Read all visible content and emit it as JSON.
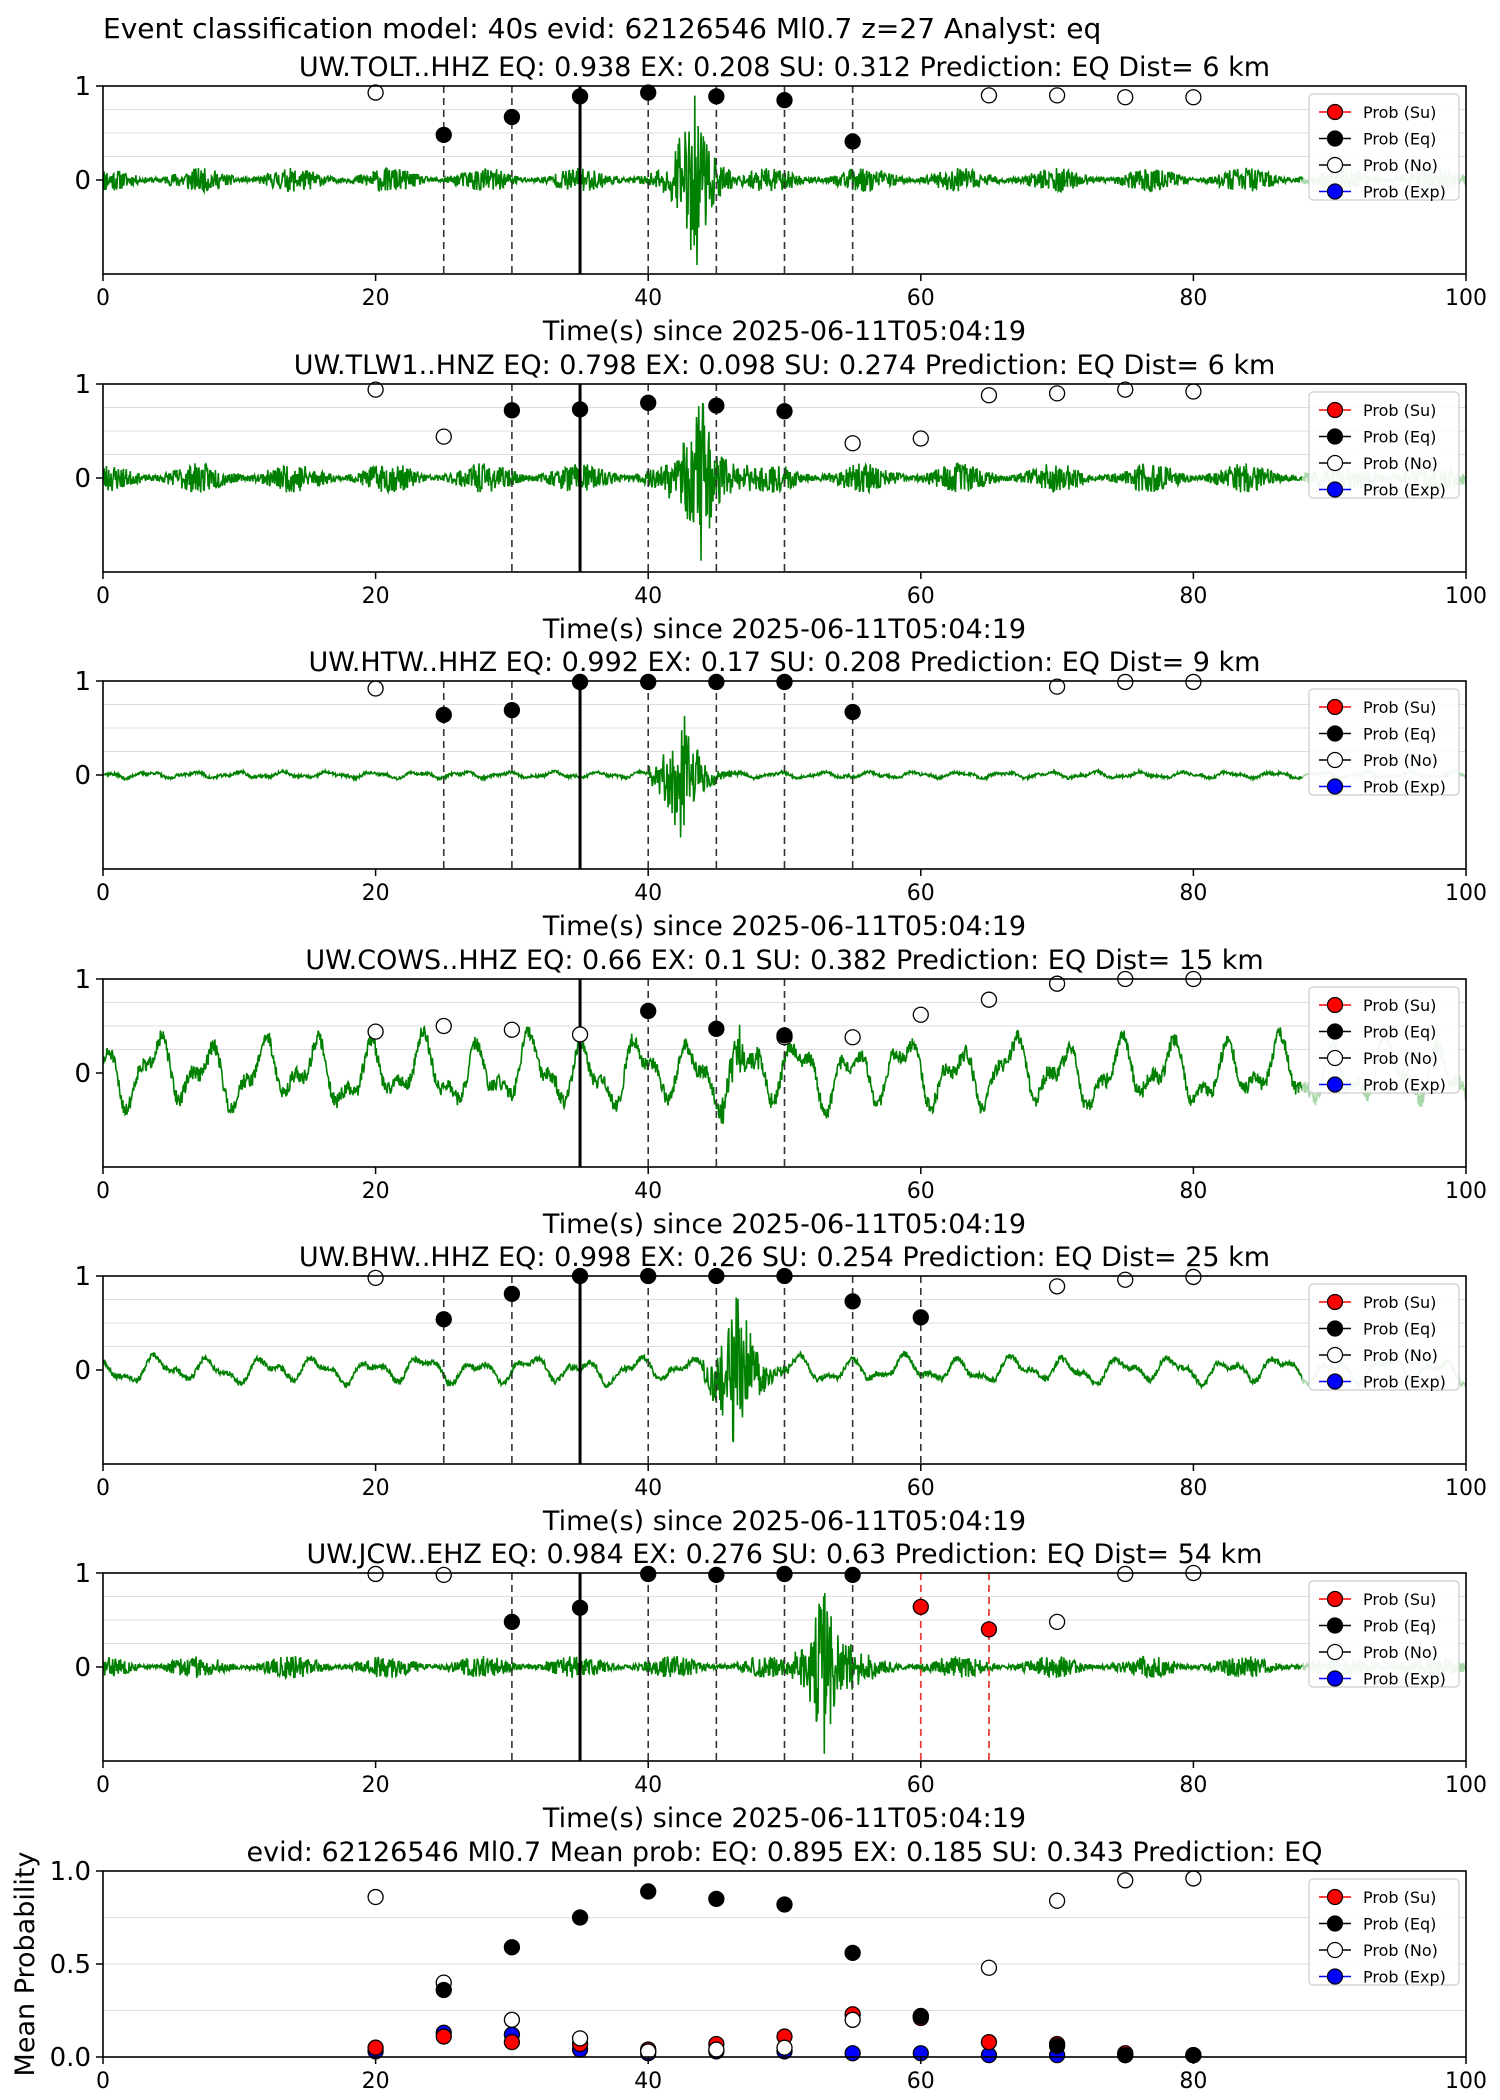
{
  "figure": {
    "suptitle": "Event classification model: 40s evid: 62126546 Ml0.7 z=27 Analyst: eq"
  },
  "legend_labels": [
    "Prob (Su)",
    "Prob (Eq)",
    "Prob (No)",
    "Prob (Exp)"
  ],
  "colors": {
    "waveform": "#008000",
    "waveform_faded": "#a9d8a9",
    "su": "#ff0000",
    "eq": "#000000",
    "no": "#ffffff",
    "exp": "#0000ff",
    "pick_line": "#000000",
    "su_line": "#e8403a"
  },
  "chart_data": [
    {
      "type": "scatter",
      "title": "UW.TOLT..HHZ   EQ: 0.938  EX: 0.208  SU: 0.312   Prediction: EQ    Dist= 6 km",
      "xlabel": "Time(s) since 2025-06-11T05:04:19",
      "ylabel": "",
      "xlim": [
        0,
        100
      ],
      "ylim": [
        -1,
        1
      ],
      "x_ticks": [
        "0",
        "20",
        "40",
        "60",
        "80",
        "100"
      ],
      "y_ticks": [
        "0",
        "1"
      ],
      "waveform": {
        "style": "noisy",
        "amplitude": 0.13,
        "burst_center": 43,
        "burst_amp": 1.0,
        "seed": 11
      },
      "solid_line": 35,
      "dashed_lines": [
        25,
        30,
        40,
        45,
        50,
        55
      ],
      "red_dashed_lines": [],
      "series": [
        {
          "name": "Prob (Eq)",
          "points": [
            [
              25,
              0.48
            ],
            [
              30,
              0.67
            ],
            [
              35,
              0.89
            ],
            [
              40,
              0.93
            ],
            [
              45,
              0.89
            ],
            [
              50,
              0.85
            ],
            [
              55,
              0.41
            ]
          ]
        },
        {
          "name": "Prob (No)",
          "points": [
            [
              20,
              0.93
            ],
            [
              65,
              0.9
            ],
            [
              70,
              0.9
            ],
            [
              75,
              0.88
            ],
            [
              80,
              0.88
            ]
          ]
        }
      ]
    },
    {
      "type": "scatter",
      "title": "UW.TLW1..HNZ   EQ: 0.798  EX: 0.098  SU: 0.274   Prediction: EQ    Dist= 6 km",
      "xlabel": "Time(s) since 2025-06-11T05:04:19",
      "ylabel": "",
      "xlim": [
        0,
        100
      ],
      "ylim": [
        -1,
        1
      ],
      "x_ticks": [
        "0",
        "20",
        "40",
        "60",
        "80",
        "100"
      ],
      "y_ticks": [
        "0",
        "1"
      ],
      "waveform": {
        "style": "noisy",
        "amplitude": 0.16,
        "burst_center": 43.5,
        "burst_amp": 1.0,
        "seed": 23
      },
      "solid_line": 35,
      "dashed_lines": [
        30,
        40,
        45,
        50
      ],
      "red_dashed_lines": [],
      "series": [
        {
          "name": "Prob (Eq)",
          "points": [
            [
              30,
              0.72
            ],
            [
              35,
              0.73
            ],
            [
              40,
              0.8
            ],
            [
              45,
              0.77
            ],
            [
              50,
              0.71
            ]
          ]
        },
        {
          "name": "Prob (No)",
          "points": [
            [
              20,
              0.94
            ],
            [
              25,
              0.44
            ],
            [
              55,
              0.37
            ],
            [
              60,
              0.42
            ],
            [
              65,
              0.88
            ],
            [
              70,
              0.9
            ],
            [
              75,
              0.94
            ],
            [
              80,
              0.92
            ]
          ]
        }
      ]
    },
    {
      "type": "scatter",
      "title": "UW.HTW..HHZ   EQ: 0.992  EX: 0.17  SU: 0.208   Prediction: EQ    Dist= 9 km",
      "xlabel": "Time(s) since 2025-06-11T05:04:19",
      "ylabel": "",
      "xlim": [
        0,
        100
      ],
      "ylim": [
        -1,
        1
      ],
      "x_ticks": [
        "0",
        "20",
        "40",
        "60",
        "80",
        "100"
      ],
      "y_ticks": [
        "0",
        "1"
      ],
      "waveform": {
        "style": "quiet",
        "amplitude": 0.04,
        "burst_center": 42,
        "burst_amp": 0.8,
        "seed": 37
      },
      "solid_line": 35,
      "dashed_lines": [
        25,
        30,
        40,
        45,
        50,
        55
      ],
      "red_dashed_lines": [],
      "series": [
        {
          "name": "Prob (Eq)",
          "points": [
            [
              25,
              0.64
            ],
            [
              30,
              0.69
            ],
            [
              35,
              0.99
            ],
            [
              40,
              0.99
            ],
            [
              45,
              0.99
            ],
            [
              50,
              0.99
            ],
            [
              55,
              0.67
            ]
          ]
        },
        {
          "name": "Prob (No)",
          "points": [
            [
              20,
              0.92
            ],
            [
              70,
              0.94
            ],
            [
              75,
              0.99
            ],
            [
              80,
              0.99
            ]
          ]
        }
      ]
    },
    {
      "type": "scatter",
      "title": "UW.COWS..HHZ   EQ: 0.66  EX: 0.1  SU: 0.382   Prediction: EQ    Dist= 15 km",
      "xlabel": "Time(s) since 2025-06-11T05:04:19",
      "ylabel": "",
      "xlim": [
        0,
        100
      ],
      "ylim": [
        -1,
        1
      ],
      "x_ticks": [
        "0",
        "20",
        "40",
        "60",
        "80",
        "100"
      ],
      "y_ticks": [
        "0",
        "1"
      ],
      "waveform": {
        "style": "swell",
        "amplitude": 0.45,
        "burst_center": 46,
        "burst_amp": 0.3,
        "seed": 51
      },
      "solid_line": 35,
      "dashed_lines": [
        40,
        45,
        50
      ],
      "red_dashed_lines": [],
      "series": [
        {
          "name": "Prob (Eq)",
          "points": [
            [
              40,
              0.66
            ],
            [
              45,
              0.47
            ],
            [
              50,
              0.4
            ]
          ]
        },
        {
          "name": "Prob (No)",
          "points": [
            [
              20,
              0.44
            ],
            [
              25,
              0.5
            ],
            [
              30,
              0.46
            ],
            [
              35,
              0.41
            ],
            [
              50,
              0.38
            ],
            [
              55,
              0.38
            ],
            [
              60,
              0.62
            ],
            [
              65,
              0.78
            ],
            [
              70,
              0.95
            ],
            [
              75,
              1.0
            ],
            [
              80,
              1.0
            ]
          ]
        }
      ]
    },
    {
      "type": "scatter",
      "title": "UW.BHW..HHZ   EQ: 0.998  EX: 0.26  SU: 0.254   Prediction: EQ    Dist= 25 km",
      "xlabel": "Time(s) since 2025-06-11T05:04:19",
      "ylabel": "",
      "xlim": [
        0,
        100
      ],
      "ylim": [
        -1,
        1
      ],
      "x_ticks": [
        "0",
        "20",
        "40",
        "60",
        "80",
        "100"
      ],
      "y_ticks": [
        "0",
        "1"
      ],
      "waveform": {
        "style": "swell",
        "amplitude": 0.17,
        "burst_center": 46,
        "burst_amp": 0.95,
        "seed": 67
      },
      "solid_line": 35,
      "dashed_lines": [
        25,
        30,
        40,
        45,
        50,
        55,
        60
      ],
      "red_dashed_lines": [],
      "series": [
        {
          "name": "Prob (Eq)",
          "points": [
            [
              25,
              0.54
            ],
            [
              30,
              0.81
            ],
            [
              35,
              1.0
            ],
            [
              40,
              1.0
            ],
            [
              45,
              1.0
            ],
            [
              50,
              1.0
            ],
            [
              55,
              0.73
            ],
            [
              60,
              0.56
            ]
          ]
        },
        {
          "name": "Prob (No)",
          "points": [
            [
              20,
              0.98
            ],
            [
              70,
              0.89
            ],
            [
              75,
              0.96
            ],
            [
              80,
              0.99
            ]
          ]
        }
      ]
    },
    {
      "type": "scatter",
      "title": "UW.JCW..EHZ   EQ: 0.984  EX: 0.276  SU: 0.63   Prediction: EQ    Dist= 54 km",
      "xlabel": "Time(s) since 2025-06-11T05:04:19",
      "ylabel": "",
      "xlim": [
        0,
        100
      ],
      "ylim": [
        -1,
        1
      ],
      "x_ticks": [
        "0",
        "20",
        "40",
        "60",
        "80",
        "100"
      ],
      "y_ticks": [
        "0",
        "1"
      ],
      "waveform": {
        "style": "noisy",
        "amplitude": 0.12,
        "burst_center": 52.5,
        "burst_amp": 1.0,
        "seed": 83
      },
      "solid_line": 35,
      "dashed_lines": [
        30,
        40,
        45,
        50,
        55
      ],
      "red_dashed_lines": [
        60,
        65
      ],
      "series": [
        {
          "name": "Prob (Su)",
          "points": [
            [
              60,
              0.64
            ],
            [
              65,
              0.4
            ]
          ]
        },
        {
          "name": "Prob (Eq)",
          "points": [
            [
              30,
              0.48
            ],
            [
              35,
              0.63
            ],
            [
              40,
              0.99
            ],
            [
              45,
              0.98
            ],
            [
              50,
              0.99
            ],
            [
              55,
              0.98
            ]
          ]
        },
        {
          "name": "Prob (No)",
          "points": [
            [
              20,
              0.99
            ],
            [
              25,
              0.98
            ],
            [
              70,
              0.48
            ],
            [
              75,
              0.99
            ],
            [
              80,
              1.0
            ]
          ]
        }
      ]
    },
    {
      "type": "scatter",
      "title": "evid: 62126546  Ml0.7   Mean prob:   EQ: 0.895  EX: 0.185  SU: 0.343   Prediction: EQ",
      "xlabel": "",
      "ylabel": "Mean Probability",
      "xlim": [
        0,
        100
      ],
      "ylim": [
        0,
        1
      ],
      "x_ticks": [
        "0",
        "20",
        "40",
        "60",
        "80",
        "100"
      ],
      "y_ticks": [
        "0.0",
        "0.5",
        "1.0"
      ],
      "grid": true,
      "series": [
        {
          "name": "Prob (Su)",
          "points": [
            [
              20,
              0.05
            ],
            [
              25,
              0.11
            ],
            [
              30,
              0.08
            ],
            [
              35,
              0.07
            ],
            [
              40,
              0.04
            ],
            [
              45,
              0.07
            ],
            [
              50,
              0.11
            ],
            [
              55,
              0.23
            ],
            [
              60,
              0.21
            ],
            [
              65,
              0.08
            ],
            [
              70,
              0.07
            ],
            [
              75,
              0.02
            ],
            [
              80,
              0.01
            ]
          ]
        },
        {
          "name": "Prob (Eq)",
          "points": [
            [
              25,
              0.36
            ],
            [
              30,
              0.59
            ],
            [
              35,
              0.75
            ],
            [
              40,
              0.89
            ],
            [
              45,
              0.85
            ],
            [
              50,
              0.82
            ],
            [
              55,
              0.56
            ],
            [
              60,
              0.22
            ],
            [
              70,
              0.06
            ],
            [
              75,
              0.01
            ],
            [
              80,
              0.01
            ]
          ]
        },
        {
          "name": "Prob (No)",
          "points": [
            [
              20,
              0.86
            ],
            [
              25,
              0.4
            ],
            [
              30,
              0.2
            ],
            [
              35,
              0.1
            ],
            [
              40,
              0.03
            ],
            [
              45,
              0.04
            ],
            [
              50,
              0.05
            ],
            [
              55,
              0.2
            ],
            [
              60,
              0.22
            ],
            [
              65,
              0.48
            ],
            [
              70,
              0.84
            ],
            [
              75,
              0.95
            ],
            [
              80,
              0.96
            ]
          ]
        },
        {
          "name": "Prob (Exp)",
          "points": [
            [
              20,
              0.03
            ],
            [
              25,
              0.13
            ],
            [
              30,
              0.12
            ],
            [
              35,
              0.04
            ],
            [
              40,
              0.02
            ],
            [
              45,
              0.03
            ],
            [
              50,
              0.03
            ],
            [
              55,
              0.02
            ],
            [
              60,
              0.02
            ],
            [
              65,
              0.01
            ],
            [
              70,
              0.01
            ],
            [
              75,
              0.01
            ],
            [
              80,
              0.01
            ]
          ]
        }
      ]
    }
  ]
}
